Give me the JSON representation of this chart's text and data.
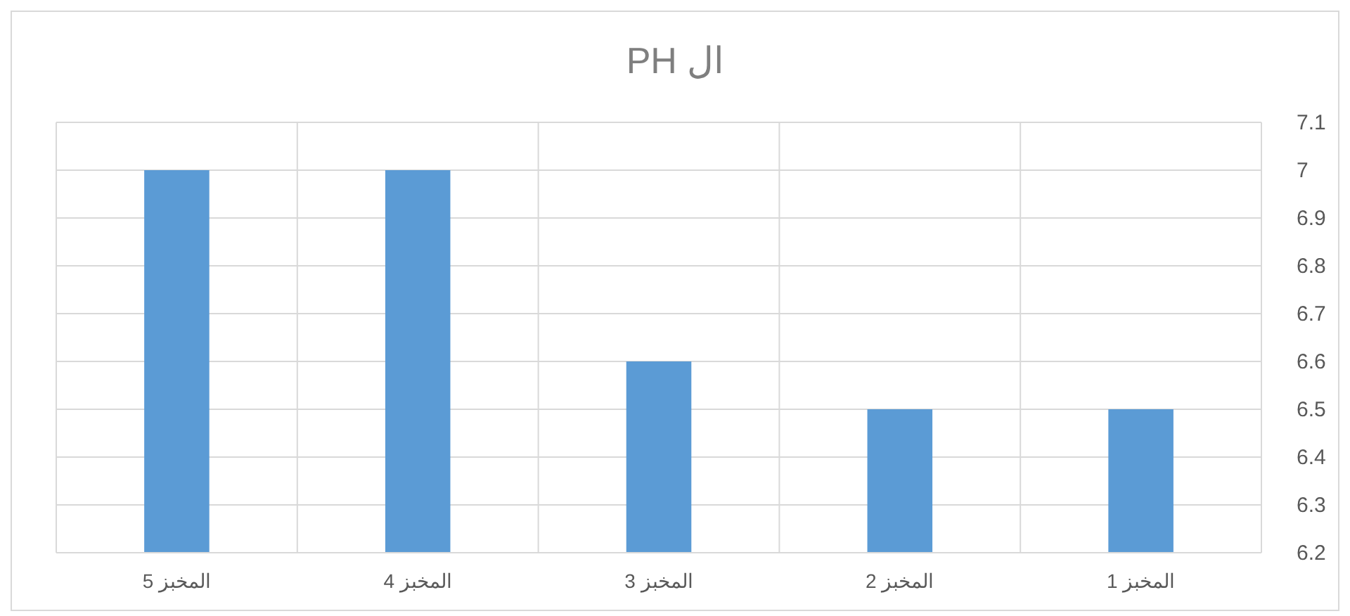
{
  "chart_data": {
    "type": "bar",
    "title": "ال PH",
    "categories": [
      "المخبز 5",
      "المخبز 4",
      "المخبز 3",
      "المخبز 2",
      "المخبز 1"
    ],
    "values": [
      7,
      7,
      6.6,
      6.5,
      6.5
    ],
    "color": "#5b9bd5",
    "ylim": [
      6.2,
      7.1
    ],
    "yticks": [
      6.2,
      6.3,
      6.4,
      6.5,
      6.6,
      6.7,
      6.8,
      6.9,
      7,
      7.1
    ],
    "grid": true
  }
}
